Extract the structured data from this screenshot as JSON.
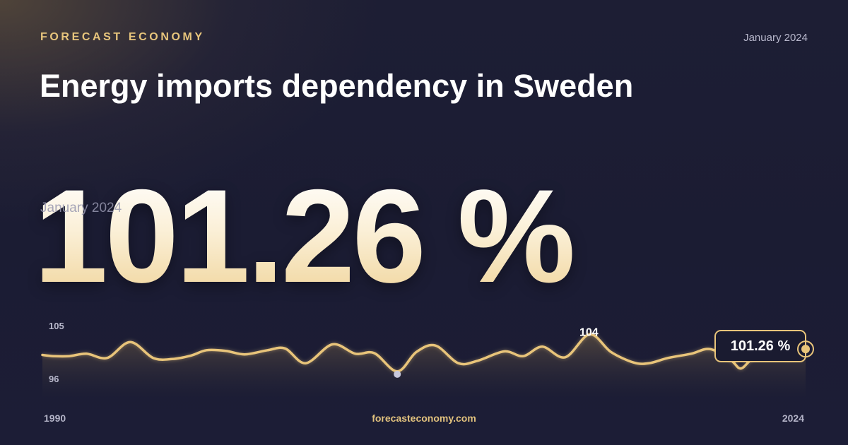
{
  "header": {
    "brand": "FORECAST ECONOMY",
    "date": "January 2024",
    "title": "Energy imports dependency in Sweden"
  },
  "highlight": {
    "value": "101.26 %",
    "date": "January 2024"
  },
  "footer": {
    "url": "forecasteconomy.com"
  },
  "colors": {
    "accent": "#e7c57c",
    "line": "#e8c47a",
    "min_marker": "#c7c8dc"
  },
  "chart_data": {
    "type": "line",
    "y_tick_labels": [
      "105",
      "96"
    ],
    "ylim": [
      96,
      105
    ],
    "x_tick_labels": [
      "1990",
      "2024"
    ],
    "xlim": [
      0,
      100
    ],
    "max_label": "104",
    "last_label": "101.26 %",
    "points": [
      [
        0,
        100.5
      ],
      [
        1.5,
        100.3
      ],
      [
        3.5,
        100.3
      ],
      [
        5.8,
        100.7
      ],
      [
        8.5,
        100
      ],
      [
        11.5,
        102.7
      ],
      [
        14.5,
        100
      ],
      [
        17,
        99.8
      ],
      [
        19.5,
        100.4
      ],
      [
        21.5,
        101.3
      ],
      [
        24,
        101.2
      ],
      [
        26.5,
        100.6
      ],
      [
        29.5,
        101.3
      ],
      [
        31.8,
        101.6
      ],
      [
        34.5,
        99.1
      ],
      [
        38,
        102.3
      ],
      [
        41,
        100.7
      ],
      [
        43.5,
        100.8
      ],
      [
        46.5,
        97.7
      ],
      [
        49,
        101
      ],
      [
        51.5,
        102.1
      ],
      [
        54.5,
        99.1
      ],
      [
        57,
        99.5
      ],
      [
        60.5,
        101.1
      ],
      [
        63,
        100.3
      ],
      [
        65.5,
        101.9
      ],
      [
        68.5,
        100.1
      ],
      [
        71.7,
        104
      ],
      [
        74.5,
        101
      ],
      [
        77.5,
        99.2
      ],
      [
        79.5,
        99.1
      ],
      [
        82,
        100
      ],
      [
        85,
        100.7
      ],
      [
        87.5,
        101.5
      ],
      [
        90.2,
        99.6
      ],
      [
        91.5,
        98.2
      ],
      [
        93,
        99.8
      ],
      [
        95.8,
        101.6
      ],
      [
        97.8,
        99.9
      ],
      [
        100,
        101.26
      ]
    ]
  }
}
